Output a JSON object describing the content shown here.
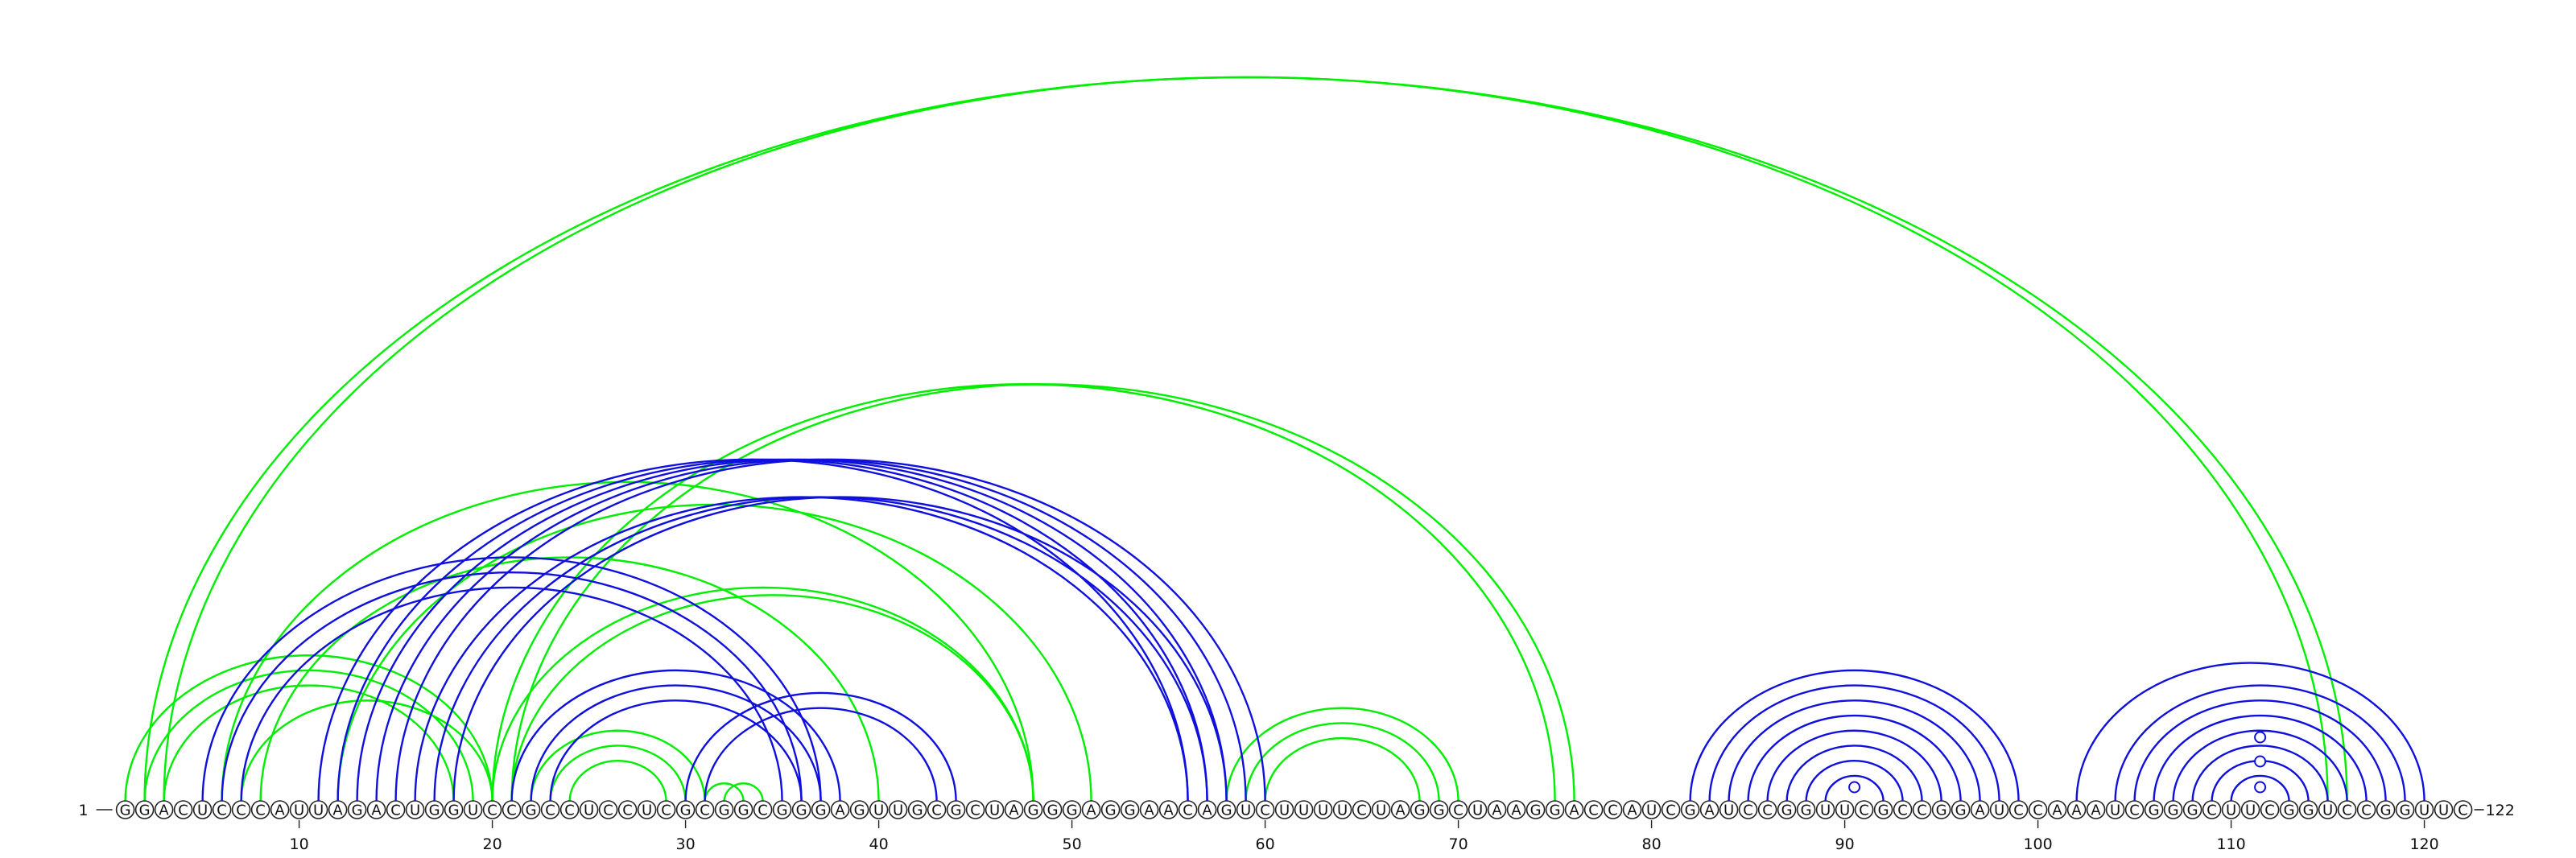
{
  "sequence": "GGACUCCCAUUAGACUGGUCCGCCUCCUCGCGGCGGGAGUUGCGCUAGGGAGGAACAGUCUUUUCUAGGCUAAGGACCAUCGAUCCGGUUCGCCGGAUCCAAAUCGGGCUUCGGUCCGGUUC",
  "start_label": "1",
  "end_label": "122",
  "tick_labels": [
    "10",
    "20",
    "30",
    "40",
    "50",
    "60",
    "70",
    "80",
    "90",
    "100",
    "110",
    "120"
  ],
  "tick_positions": [
    10,
    20,
    30,
    40,
    50,
    60,
    70,
    80,
    90,
    100,
    110,
    120
  ],
  "colors": {
    "green": "#00ee00",
    "blue": "#1010dd",
    "outline": "#222222"
  },
  "arc_groups": [
    {
      "color": "green",
      "pairs": [
        [
          2,
          116
        ],
        [
          3,
          115
        ]
      ]
    },
    {
      "color": "green",
      "pairs": [
        [
          1,
          20
        ],
        [
          2,
          19
        ],
        [
          3,
          18
        ],
        [
          7,
          20
        ]
      ]
    },
    {
      "color": "green",
      "pairs": [
        [
          8,
          40
        ],
        [
          6,
          48
        ]
      ]
    },
    {
      "color": "green",
      "pairs": [
        [
          20,
          48
        ],
        [
          21,
          48
        ]
      ]
    },
    {
      "color": "green",
      "pairs": [
        [
          12,
          51
        ]
      ]
    },
    {
      "color": "green",
      "pairs": [
        [
          20,
          75
        ],
        [
          21,
          76
        ]
      ]
    },
    {
      "color": "green",
      "pairs": [
        [
          22,
          31
        ],
        [
          23,
          30
        ],
        [
          24,
          29
        ]
      ]
    },
    {
      "color": "green",
      "pairs": [
        [
          31,
          33
        ],
        [
          32,
          34
        ]
      ]
    },
    {
      "color": "green",
      "pairs": [
        [
          58,
          70
        ],
        [
          59,
          69
        ],
        [
          60,
          68
        ]
      ]
    },
    {
      "color": "blue",
      "pairs": [
        [
          5,
          37
        ],
        [
          6,
          36
        ],
        [
          7,
          35
        ]
      ]
    },
    {
      "color": "blue",
      "pairs": [
        [
          11,
          56
        ],
        [
          12,
          57
        ],
        [
          13,
          58
        ],
        [
          14,
          59
        ],
        [
          15,
          60
        ]
      ]
    },
    {
      "color": "blue",
      "pairs": [
        [
          16,
          56
        ],
        [
          17,
          57
        ],
        [
          18,
          58
        ]
      ]
    },
    {
      "color": "blue",
      "pairs": [
        [
          21,
          38
        ],
        [
          22,
          37
        ],
        [
          23,
          36
        ]
      ]
    },
    {
      "color": "blue",
      "pairs": [
        [
          30,
          44
        ],
        [
          31,
          43
        ]
      ]
    },
    {
      "color": "blue",
      "pairs": [
        [
          82,
          99
        ],
        [
          83,
          98
        ],
        [
          84,
          97
        ],
        [
          85,
          96
        ],
        [
          86,
          95
        ],
        [
          87,
          94
        ],
        [
          88,
          93
        ],
        [
          89,
          92
        ]
      ]
    },
    {
      "color": "blue",
      "pairs": [
        [
          102,
          120
        ],
        [
          104,
          119
        ],
        [
          105,
          118
        ],
        [
          106,
          117
        ],
        [
          107,
          116
        ],
        [
          108,
          115
        ],
        [
          109,
          114
        ],
        [
          110,
          113
        ]
      ]
    }
  ],
  "loop_markers": [
    {
      "pos": 90.5,
      "color": "blue"
    },
    {
      "pos": 111.5,
      "color": "blue"
    }
  ]
}
